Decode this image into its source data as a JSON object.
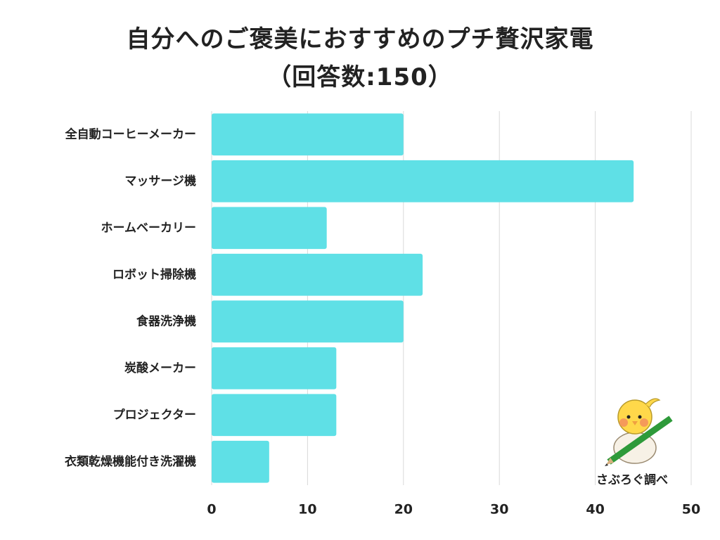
{
  "title": "自分へのご褒美におすすめのプチ贅沢家電",
  "subtitle": "（回答数:150）",
  "credit": "さぶろぐ調べ",
  "colors": {
    "bar": "#5fe0e6",
    "grid": "#d9d9d9",
    "text": "#222222"
  },
  "chart_data": {
    "type": "bar",
    "orientation": "horizontal",
    "title": "自分へのご褒美におすすめのプチ贅沢家電",
    "subtitle": "（回答数:150）",
    "categories": [
      "全自動コーヒーメーカー",
      "マッサージ機",
      "ホームベーカリー",
      "ロボット掃除機",
      "食器洗浄機",
      "炭酸メーカー",
      "プロジェクター",
      "衣類乾燥機能付き洗濯機"
    ],
    "values": [
      20,
      44,
      12,
      22,
      20,
      13,
      13,
      6
    ],
    "xlim": [
      0,
      50
    ],
    "xticks": [
      0,
      10,
      20,
      30,
      40,
      50
    ],
    "xlabel": "",
    "ylabel": "",
    "grid": true
  }
}
